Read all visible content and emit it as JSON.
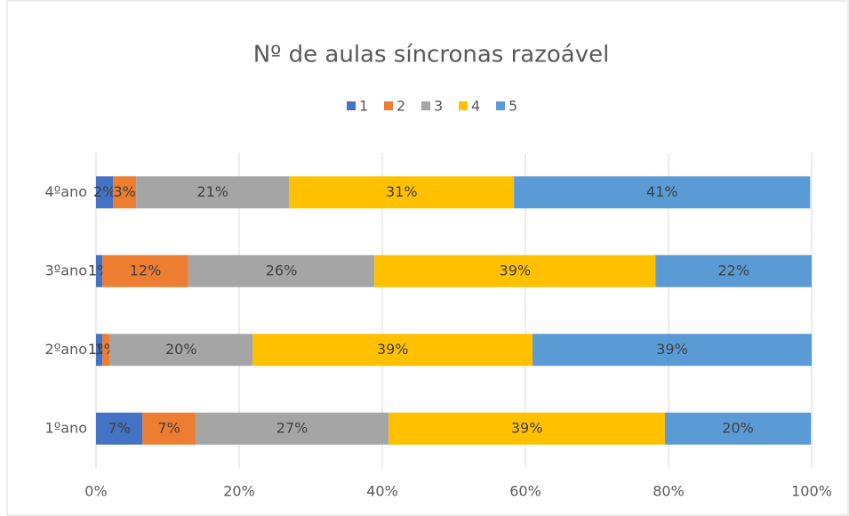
{
  "chart_data": {
    "type": "bar",
    "orientation": "horizontal",
    "stacked": true,
    "title": "Nº de aulas síncronas razoável",
    "categories": [
      "1ºano",
      "2ºano",
      "3ºano",
      "4ºano"
    ],
    "series": [
      {
        "name": "1",
        "color": "#4472c4",
        "values": [
          6.5,
          0.9,
          0.9,
          2.4
        ],
        "value_labels": [
          "7%",
          "1%",
          "1%",
          "2%"
        ]
      },
      {
        "name": "2",
        "color": "#ed7d31",
        "values": [
          7.4,
          1.0,
          12.0,
          3.2
        ],
        "value_labels": [
          "7%",
          "1%",
          "12%",
          "3%"
        ]
      },
      {
        "name": "3",
        "color": "#a5a5a5",
        "values": [
          27.0,
          20.0,
          26.0,
          21.4
        ],
        "value_labels": [
          "27%",
          "20%",
          "26%",
          "21%"
        ]
      },
      {
        "name": "4",
        "color": "#ffc000",
        "values": [
          38.6,
          39.1,
          39.3,
          31.4
        ],
        "value_labels": [
          "39%",
          "39%",
          "39%",
          "31%"
        ]
      },
      {
        "name": "5",
        "color": "#5b9bd5",
        "values": [
          20.4,
          39.0,
          21.8,
          41.4
        ],
        "value_labels": [
          "20%",
          "39%",
          "22%",
          "41%"
        ]
      }
    ],
    "xlim": [
      0,
      100
    ],
    "xticks": [
      {
        "value": 0,
        "label": "0%"
      },
      {
        "value": 20,
        "label": "20%"
      },
      {
        "value": 40,
        "label": "40%"
      },
      {
        "value": 60,
        "label": "60%"
      },
      {
        "value": 80,
        "label": "80%"
      },
      {
        "value": 100,
        "label": "100%"
      }
    ],
    "grid": true,
    "legend": "top"
  }
}
